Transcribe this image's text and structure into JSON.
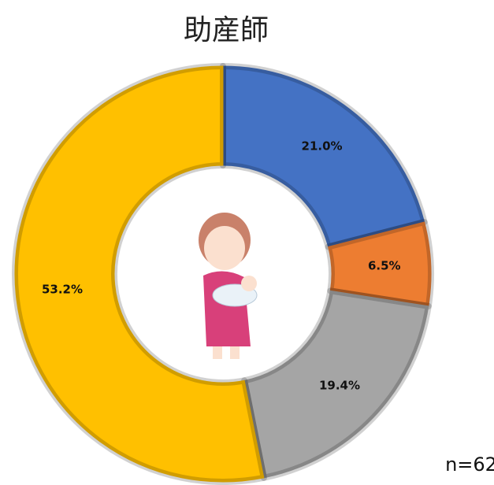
{
  "chart_data": {
    "type": "donut",
    "title": "助産師",
    "values": [
      21.0,
      6.5,
      19.4,
      53.2
    ],
    "value_labels": [
      "21.0%",
      "6.5%",
      "19.4%",
      "53.2%"
    ],
    "colors": [
      "#4472c4",
      "#ed7d31",
      "#a5a5a5",
      "#ffc000"
    ],
    "annotation": "n=62"
  }
}
